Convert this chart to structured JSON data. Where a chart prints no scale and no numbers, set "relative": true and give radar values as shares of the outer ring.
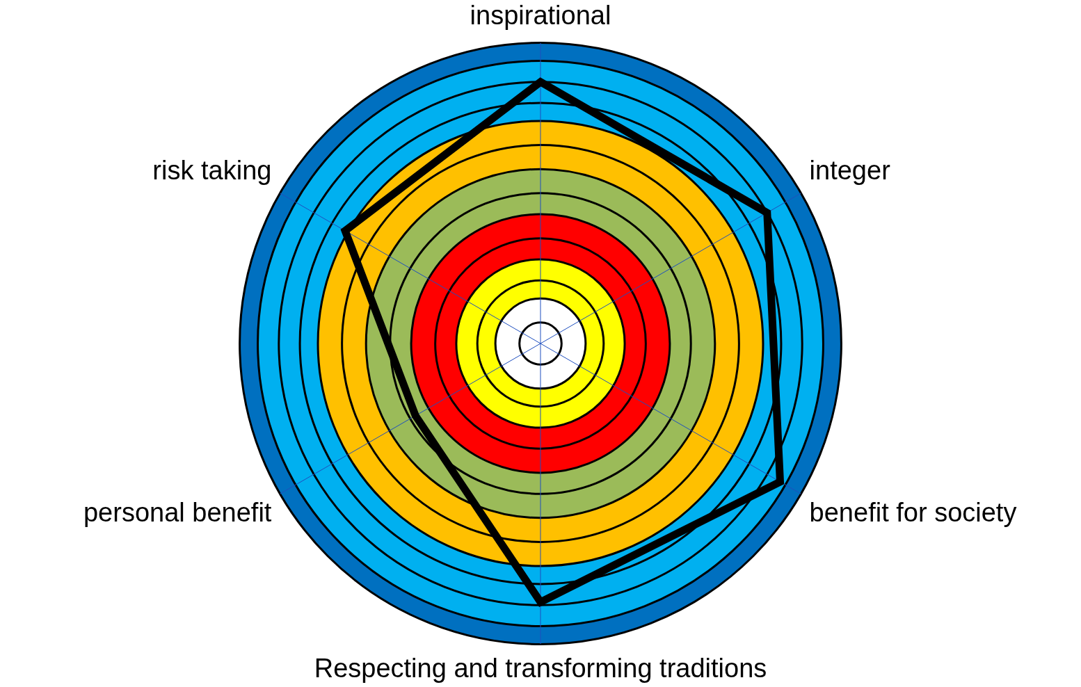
{
  "chart_data": {
    "type": "radar",
    "relative": true,
    "marker": "none",
    "categories": [
      "inspirational",
      "integer",
      "benefit for society",
      "Respecting and transforming traditions",
      "personal benefit",
      "risk taking"
    ],
    "series": [
      {
        "color": "#000000",
        "values": [
          0.87,
          0.87,
          0.92,
          0.86,
          0.48,
          0.75
        ]
      }
    ]
  }
}
